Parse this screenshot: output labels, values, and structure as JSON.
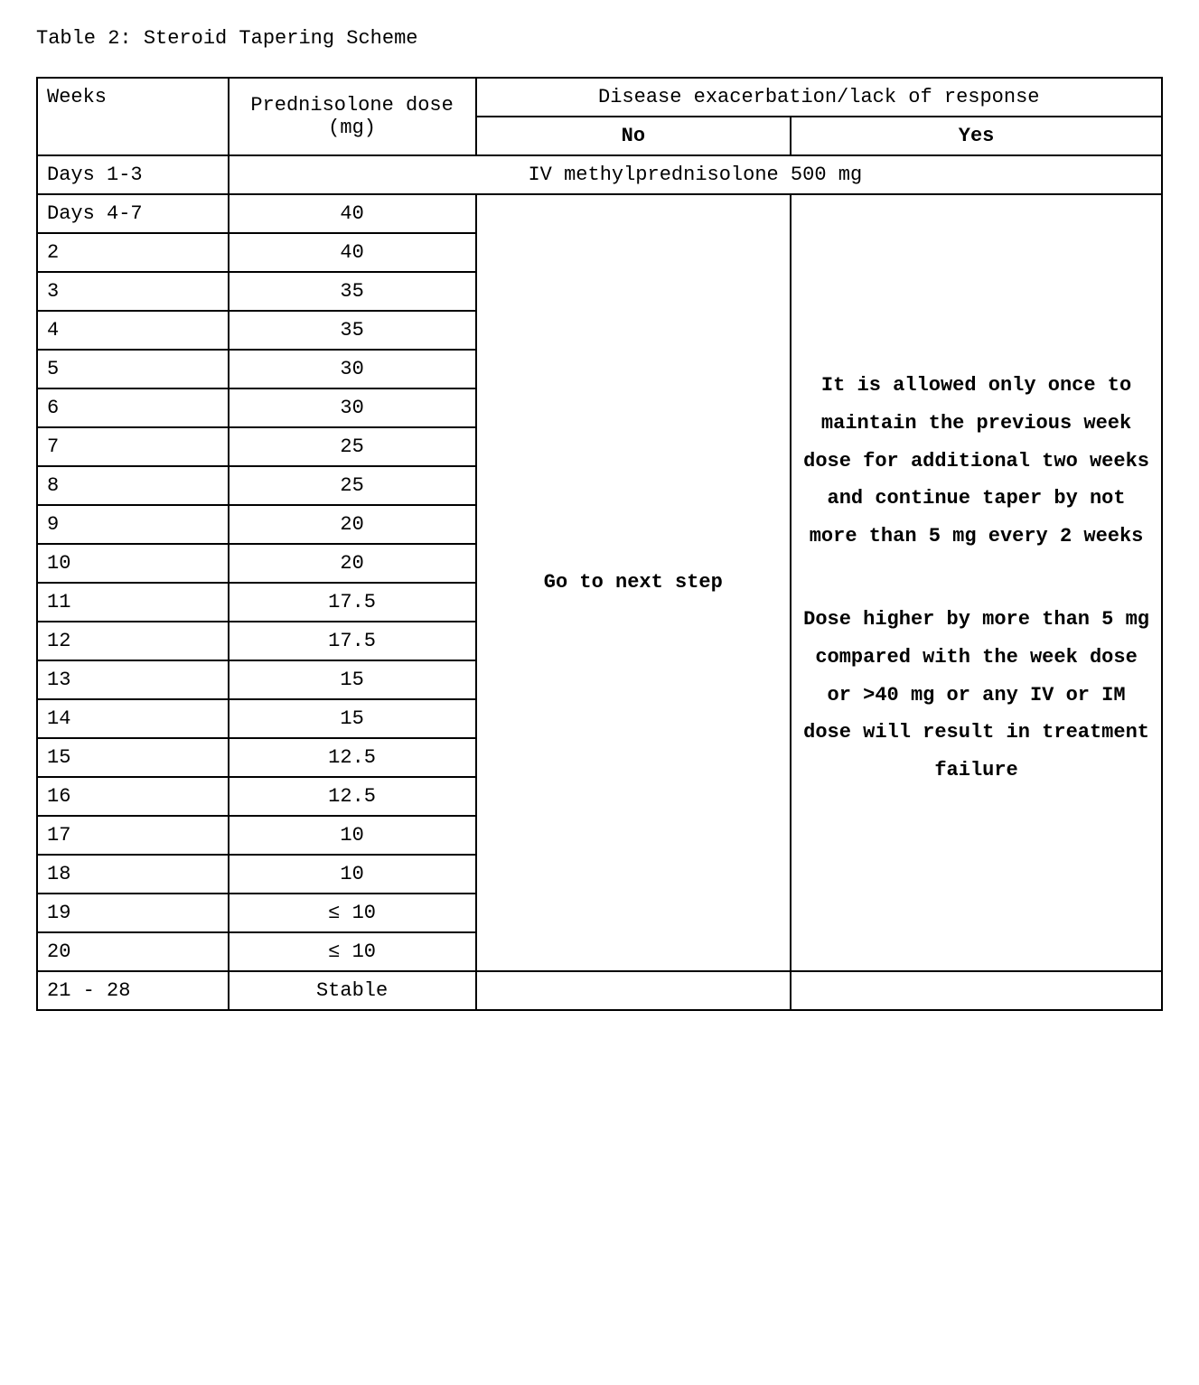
{
  "title": "Table 2: Steroid Tapering Scheme",
  "colors": {
    "background": "#ffffff",
    "text": "#000000",
    "border": "#000000"
  },
  "typography": {
    "font_family": "Courier New",
    "base_fontsize_pt": 16
  },
  "table": {
    "type": "table",
    "column_widths_pct": [
      17,
      22,
      28,
      33
    ],
    "header": {
      "weeks": "Weeks",
      "prednisolone": "Prednisolone dose (mg)",
      "exacerbation": "Disease exacerbation/lack of response",
      "no": "No",
      "yes": "Yes"
    },
    "first_row": {
      "weeks": "Days 1-3",
      "span_text": "IV methylprednisolone 500 mg"
    },
    "rows": [
      {
        "weeks": "Days 4-7",
        "dose": "40"
      },
      {
        "weeks": "2",
        "dose": "40"
      },
      {
        "weeks": "3",
        "dose": "35"
      },
      {
        "weeks": "4",
        "dose": "35"
      },
      {
        "weeks": "5",
        "dose": "30"
      },
      {
        "weeks": "6",
        "dose": "30"
      },
      {
        "weeks": "7",
        "dose": "25"
      },
      {
        "weeks": "8",
        "dose": "25"
      },
      {
        "weeks": "9",
        "dose": "20"
      },
      {
        "weeks": "10",
        "dose": "20"
      },
      {
        "weeks": "11",
        "dose": "17.5"
      },
      {
        "weeks": "12",
        "dose": "17.5"
      },
      {
        "weeks": "13",
        "dose": "15"
      },
      {
        "weeks": "14",
        "dose": "15"
      },
      {
        "weeks": "15",
        "dose": "12.5"
      },
      {
        "weeks": "16",
        "dose": "12.5"
      },
      {
        "weeks": "17",
        "dose": "10"
      },
      {
        "weeks": "18",
        "dose": "10"
      },
      {
        "weeks": "19",
        "dose": "≤ 10"
      },
      {
        "weeks": "20",
        "dose": "≤ 10"
      }
    ],
    "no_block": "Go to next step",
    "yes_block_para1": "It is allowed only once to maintain the previous week dose  for additional two weeks and continue taper by not more than 5 mg every 2 weeks",
    "yes_block_para2": "Dose higher by more than 5 mg compared with the week dose or >40 mg or any IV or IM dose will result in treatment failure",
    "last_row": {
      "weeks": "21 - 28",
      "dose": "Stable",
      "no": "",
      "yes": ""
    }
  }
}
